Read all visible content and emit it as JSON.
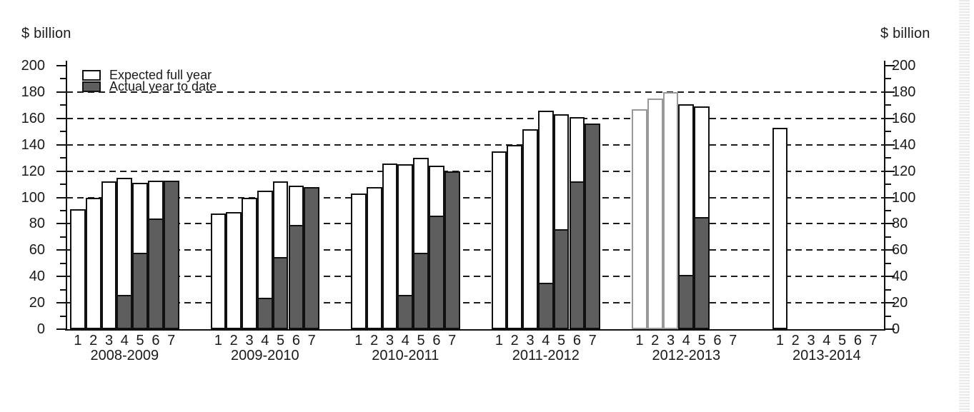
{
  "page": {
    "left_axis_title": "$ billion",
    "right_axis_title": "$ billion"
  },
  "legend": {
    "expected": "Expected full year",
    "actual": "Actual year to date"
  },
  "colors": {
    "expected_fill": "#ffffff",
    "actual_fill": "#5e5e5e",
    "outline": "#111111",
    "projection_outline": "#999999",
    "text": "#1a1a1a",
    "grid": "#1c1c1c"
  },
  "chart_data": {
    "type": "bar",
    "title": "",
    "ylabel_left": "$ billion",
    "ylabel_right": "$ billion",
    "ylim": [
      0,
      200
    ],
    "yticks": [
      0,
      20,
      40,
      60,
      80,
      100,
      120,
      140,
      160,
      180,
      200
    ],
    "minor_tick_step": 10,
    "grid": "dashed horizontal lines at 20 to 180 step 20",
    "legend_position": "top-left inside plot",
    "sub_labels": [
      "1",
      "2",
      "3",
      "4",
      "5",
      "6",
      "7"
    ],
    "series_names": [
      "Expected full year",
      "Actual year to date"
    ],
    "groups": [
      {
        "label": "2008-2009",
        "expected": [
          91,
          100,
          112,
          115,
          111,
          113,
          113
        ],
        "actual": [
          null,
          null,
          null,
          26,
          58,
          84,
          113
        ]
      },
      {
        "label": "2009-2010",
        "expected": [
          88,
          89,
          100,
          105,
          112,
          109,
          108
        ],
        "actual": [
          null,
          null,
          null,
          24,
          55,
          79,
          108
        ]
      },
      {
        "label": "2010-2011",
        "expected": [
          103,
          108,
          126,
          125,
          130,
          124,
          120
        ],
        "actual": [
          null,
          null,
          null,
          26,
          58,
          86,
          120
        ]
      },
      {
        "label": "2011-2012",
        "expected": [
          135,
          140,
          152,
          166,
          163,
          161,
          156
        ],
        "actual": [
          null,
          null,
          null,
          35,
          76,
          112,
          156
        ]
      },
      {
        "label": "2012-2013",
        "expected": [
          167,
          175,
          180,
          171,
          169,
          null,
          null
        ],
        "actual": [
          null,
          null,
          null,
          41,
          85,
          null,
          null
        ],
        "gray_outline_bars": [
          0,
          1,
          2
        ]
      },
      {
        "label": "2013-2014",
        "expected": [
          153,
          null,
          null,
          null,
          null,
          null,
          null
        ],
        "actual": [
          null,
          null,
          null,
          null,
          null,
          null,
          null
        ]
      }
    ]
  }
}
